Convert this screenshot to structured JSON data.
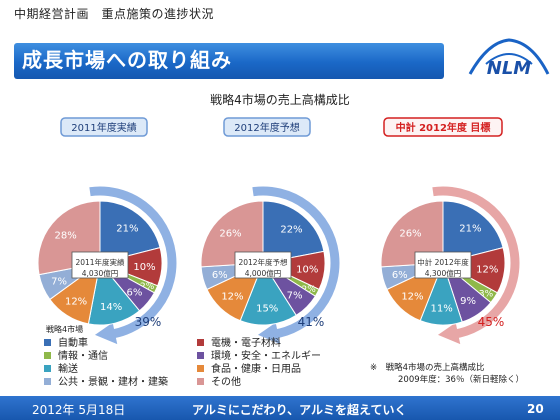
{
  "header": {
    "subtitle": "中期経営計画　重点施策の進捗状況",
    "title": "成長市場への取り組み"
  },
  "logo": {
    "text": "NLM"
  },
  "footer": {
    "date": "2012年 5月18日",
    "slogan": "アルミにこだわり、アルミを超えていく",
    "page": "20"
  },
  "colors": {
    "auto": "#3a6fb5",
    "elec": "#b23b3b",
    "info": "#8fb84a",
    "env": "#6d52a0",
    "transport": "#3aa3c0",
    "food": "#e5893a",
    "public": "#93aed6",
    "other": "#d99695",
    "arrow_blue": "#8fb1e3",
    "arrow_red": "#e7a6a6",
    "label_blue": "#1f3f7a",
    "label_red": "#d42020"
  },
  "chart_data": {
    "type": "pie",
    "title": "戦略4市場の売上高構成比",
    "legend_title": "戦略4市場",
    "categories": [
      "自動車",
      "電機・電子材料",
      "情報・通信",
      "環境・安全・エネルギー",
      "輸送",
      "食品・健康・日用品",
      "公共・景観・建材・建築",
      "その他"
    ],
    "charts": [
      {
        "header": "2011年度実績",
        "header_style": "blue",
        "center_label_1": "2011年度実績",
        "center_label_2": "4,030億円",
        "values": [
          21,
          10,
          2,
          6,
          14,
          12,
          7,
          28
        ],
        "value_labels": [
          "21%",
          "10%",
          "2%",
          "6%",
          "14%",
          "12%",
          "7%",
          "28%"
        ],
        "strategic_share": "39%",
        "arrow_color": "blue"
      },
      {
        "header": "2012年度予想",
        "header_style": "blue",
        "center_label_1": "2012年度予想",
        "center_label_2": "4,000億円",
        "values": [
          22,
          10,
          2,
          7,
          15,
          12,
          6,
          26
        ],
        "value_labels": [
          "22%",
          "10%",
          "2%",
          "7%",
          "15%",
          "12%",
          "6%",
          "26%"
        ],
        "strategic_share": "41%",
        "arrow_color": "blue"
      },
      {
        "header": "中計 2012年度 目標",
        "header_style": "red",
        "center_label_1": "中計 2012年度",
        "center_label_2": "4,300億円",
        "values": [
          21,
          12,
          3,
          9,
          11,
          12,
          6,
          26
        ],
        "value_labels": [
          "21%",
          "12%",
          "3%",
          "9%",
          "11%",
          "12%",
          "6%",
          "26%"
        ],
        "strategic_share": "45%",
        "arrow_color": "red"
      }
    ],
    "note_line1": "※　戦略4市場の売上高構成比",
    "note_line2": "2009年度：36％（新日軽除く）"
  }
}
